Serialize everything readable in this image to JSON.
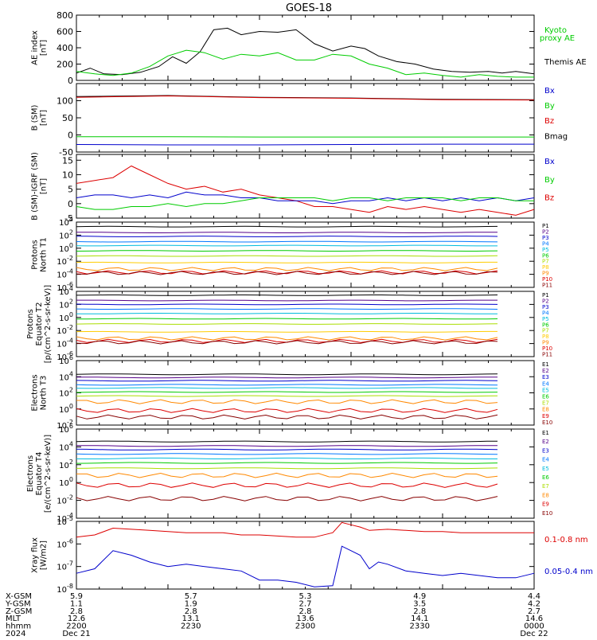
{
  "title": "GOES-18",
  "x_axis": {
    "ticks": [
      "2200",
      "2230",
      "2300",
      "2330",
      "0000"
    ],
    "rows": [
      {
        "label": "X-GSM",
        "values": [
          "5.9",
          "5.7",
          "5.3",
          "4.9",
          "4.4"
        ]
      },
      {
        "label": "Y-GSM",
        "values": [
          "1.1",
          "1.9",
          "2.7",
          "3.5",
          "4.2"
        ]
      },
      {
        "label": "Z-GSM",
        "values": [
          "2.8",
          "2.8",
          "2.8",
          "2.8",
          "2.7"
        ]
      },
      {
        "label": "MLT",
        "values": [
          "12.6",
          "13.1",
          "13.6",
          "14.1",
          "14.6"
        ]
      },
      {
        "label": "hhmm",
        "values": [
          "2200",
          "2230",
          "2300",
          "2330",
          "0000"
        ]
      },
      {
        "label": "2024",
        "values": [
          "Dec 21",
          "",
          "",
          "",
          "Dec 22"
        ]
      }
    ]
  },
  "colors": {
    "black": "#000000",
    "red": "#dd0000",
    "green": "#00cc00",
    "blue": "#0000cc"
  },
  "chart_data": [
    {
      "type": "line",
      "id": "ae",
      "ylabel": [
        "AE index",
        "[nT]"
      ],
      "ylim": [
        0,
        800
      ],
      "yticks": [
        "800",
        "600",
        "400",
        "200",
        "0"
      ],
      "legend": [
        {
          "text": "Kyoto",
          "color": "#00cc00"
        },
        {
          "text": "proxy AE",
          "color": "#00cc00"
        },
        {
          "text": "Themis AE",
          "color": "#000000"
        }
      ],
      "series": [
        {
          "name": "Themis AE",
          "color": "#000000",
          "x": [
            0,
            3,
            6,
            10,
            14,
            18,
            21,
            24,
            27,
            30,
            33,
            36,
            40,
            44,
            48,
            52,
            56,
            60,
            63,
            66,
            70,
            74,
            78,
            82,
            86,
            90,
            93,
            96,
            100
          ],
          "y": [
            90,
            150,
            80,
            70,
            100,
            170,
            290,
            210,
            350,
            620,
            640,
            560,
            600,
            590,
            620,
            450,
            360,
            420,
            390,
            300,
            230,
            200,
            140,
            110,
            100,
            110,
            90,
            110,
            80
          ]
        },
        {
          "name": "Kyoto proxy AE",
          "color": "#00cc00",
          "x": [
            0,
            4,
            8,
            12,
            16,
            20,
            24,
            28,
            32,
            36,
            40,
            44,
            48,
            52,
            56,
            60,
            64,
            68,
            72,
            76,
            80,
            84,
            88,
            92,
            96,
            100
          ],
          "y": [
            110,
            80,
            60,
            90,
            170,
            300,
            370,
            340,
            260,
            320,
            300,
            340,
            250,
            250,
            320,
            300,
            200,
            150,
            70,
            90,
            60,
            40,
            70,
            50,
            40,
            40
          ]
        }
      ]
    },
    {
      "type": "line",
      "id": "bsm",
      "ylabel": [
        "B (SM)",
        "[nT]"
      ],
      "ylim": [
        -50,
        150
      ],
      "yticks": [
        "100",
        "50",
        "0",
        "-50"
      ],
      "legend": [
        {
          "text": "Bx",
          "color": "#0000cc"
        },
        {
          "text": "By",
          "color": "#00cc00"
        },
        {
          "text": "Bz",
          "color": "#dd0000"
        },
        {
          "text": "Bmag",
          "color": "#000000"
        }
      ],
      "series": [
        {
          "name": "Bmag",
          "color": "#000000",
          "x": [
            0,
            20,
            40,
            60,
            80,
            100
          ],
          "y": [
            112,
            115,
            110,
            108,
            104,
            103
          ]
        },
        {
          "name": "Bz",
          "color": "#dd0000",
          "x": [
            0,
            20,
            40,
            60,
            80,
            100
          ],
          "y": [
            110,
            114,
            109,
            107,
            103,
            102
          ]
        },
        {
          "name": "By",
          "color": "#00cc00",
          "x": [
            0,
            20,
            40,
            60,
            80,
            100
          ],
          "y": [
            -5,
            -5,
            -6,
            -6,
            -6,
            -6
          ]
        },
        {
          "name": "Bx",
          "color": "#0000cc",
          "x": [
            0,
            20,
            40,
            60,
            80,
            100
          ],
          "y": [
            -28,
            -29,
            -29,
            -28,
            -27,
            -27
          ]
        }
      ]
    },
    {
      "type": "line",
      "id": "bsub",
      "ylabel": [
        "B (SM)-IGRF (SM)",
        "[nT]"
      ],
      "ylim": [
        -5,
        17
      ],
      "yticks": [
        "15",
        "10",
        "5",
        "0",
        "-5"
      ],
      "legend": [
        {
          "text": "Bx",
          "color": "#0000cc"
        },
        {
          "text": "By",
          "color": "#00cc00"
        },
        {
          "text": "Bz",
          "color": "#dd0000"
        }
      ],
      "series": [
        {
          "name": "Bz",
          "color": "#dd0000",
          "x": [
            0,
            4,
            8,
            12,
            16,
            20,
            24,
            28,
            32,
            36,
            40,
            44,
            48,
            52,
            56,
            60,
            64,
            68,
            72,
            76,
            80,
            84,
            88,
            92,
            96,
            100
          ],
          "y": [
            7,
            8,
            9,
            13,
            10,
            7,
            5,
            6,
            4,
            5,
            3,
            2,
            1,
            -1,
            -1,
            -2,
            -3,
            -1,
            -2,
            -1,
            -2,
            -3,
            -2,
            -3,
            -4,
            -2
          ]
        },
        {
          "name": "Bx",
          "color": "#0000cc",
          "x": [
            0,
            4,
            8,
            12,
            16,
            20,
            24,
            28,
            32,
            36,
            40,
            44,
            48,
            52,
            56,
            60,
            64,
            68,
            72,
            76,
            80,
            84,
            88,
            92,
            96,
            100
          ],
          "y": [
            2,
            3,
            3,
            2,
            3,
            2,
            4,
            3,
            3,
            2,
            2,
            1,
            1,
            1,
            0,
            1,
            1,
            2,
            1,
            2,
            1,
            2,
            1,
            2,
            1,
            2
          ]
        },
        {
          "name": "By",
          "color": "#00cc00",
          "x": [
            0,
            4,
            8,
            12,
            16,
            20,
            24,
            28,
            32,
            36,
            40,
            44,
            48,
            52,
            56,
            60,
            64,
            68,
            72,
            76,
            80,
            84,
            88,
            92,
            96,
            100
          ],
          "y": [
            -1,
            -2,
            -2,
            -1,
            -1,
            0,
            -1,
            0,
            0,
            1,
            2,
            2,
            2,
            2,
            1,
            2,
            2,
            1,
            2,
            2,
            2,
            1,
            2,
            2,
            1,
            1
          ]
        }
      ]
    },
    {
      "type": "line",
      "id": "pn",
      "scale": "log",
      "ylabel": [
        "Protons",
        "North T1"
      ],
      "ylim": [
        -6,
        4
      ],
      "yticks": [
        "10^4",
        "10^2",
        "10^0",
        "10^-2",
        "10^-4",
        "10^-6"
      ],
      "legend": [
        {
          "text": "P1",
          "color": "#000000"
        },
        {
          "text": "P2",
          "color": "#550088"
        },
        {
          "text": "P3",
          "color": "#0000cc"
        },
        {
          "text": "P4",
          "color": "#0077ff"
        },
        {
          "text": "P5",
          "color": "#00bbdd"
        },
        {
          "text": "P6",
          "color": "#00cc00"
        },
        {
          "text": "P7",
          "color": "#aadd00"
        },
        {
          "text": "P8",
          "color": "#ffcc00"
        },
        {
          "text": "P9",
          "color": "#ff8800"
        },
        {
          "text": "P10",
          "color": "#dd0000"
        },
        {
          "text": "P11",
          "color": "#880000"
        }
      ],
      "levels": [
        3.3,
        2.4,
        1.8,
        1.0,
        0.4,
        -0.4,
        -1.2,
        -2.2,
        -3.2,
        -3.7,
        -3.8
      ],
      "colors": [
        "#000000",
        "#550088",
        "#0000cc",
        "#0077ff",
        "#00bbdd",
        "#00cc00",
        "#aadd00",
        "#ffcc00",
        "#ff8800",
        "#dd0000",
        "#880000"
      ]
    },
    {
      "type": "line",
      "id": "pe",
      "scale": "log",
      "ylabel": [
        "Protons",
        "Equator T2",
        "[p/(cm^2-s-sr-keV)]"
      ],
      "ylim": [
        -6,
        4
      ],
      "yticks": [
        "10^4",
        "10^2",
        "10^0",
        "10^-2",
        "10^-4",
        "10^-6"
      ],
      "legend": [
        {
          "text": "P1",
          "color": "#000000"
        },
        {
          "text": "P2",
          "color": "#550088"
        },
        {
          "text": "P3",
          "color": "#0000cc"
        },
        {
          "text": "P4",
          "color": "#0077ff"
        },
        {
          "text": "P5",
          "color": "#00bbdd"
        },
        {
          "text": "P6",
          "color": "#00cc00"
        },
        {
          "text": "P7",
          "color": "#aadd00"
        },
        {
          "text": "P8",
          "color": "#ffcc00"
        },
        {
          "text": "P9",
          "color": "#ff8800"
        },
        {
          "text": "P10",
          "color": "#dd0000"
        },
        {
          "text": "P11",
          "color": "#880000"
        }
      ],
      "levels": [
        3.4,
        2.6,
        2.0,
        1.3,
        0.6,
        -0.2,
        -1.0,
        -2.2,
        -3.2,
        -3.6,
        -3.8
      ],
      "colors": [
        "#000000",
        "#550088",
        "#0000cc",
        "#0077ff",
        "#00bbdd",
        "#00cc00",
        "#aadd00",
        "#ffcc00",
        "#ff8800",
        "#dd0000",
        "#880000"
      ]
    },
    {
      "type": "line",
      "id": "en",
      "scale": "log",
      "ylabel": [
        "Electrons",
        "North T3"
      ],
      "ylim": [
        -2,
        6
      ],
      "yticks": [
        "10^6",
        "10^4",
        "10^2",
        "10^0",
        "10^-2"
      ],
      "legend": [
        {
          "text": "E1",
          "color": "#000000"
        },
        {
          "text": "E2",
          "color": "#550088"
        },
        {
          "text": "E3",
          "color": "#0000cc"
        },
        {
          "text": "E4",
          "color": "#0077ff"
        },
        {
          "text": "E5",
          "color": "#00bbdd"
        },
        {
          "text": "E6",
          "color": "#00cc00"
        },
        {
          "text": "E7",
          "color": "#aadd00"
        },
        {
          "text": "E8",
          "color": "#ff8800"
        },
        {
          "text": "E9",
          "color": "#dd0000"
        },
        {
          "text": "E10",
          "color": "#880000"
        }
      ],
      "levels": [
        4.3,
        3.9,
        3.5,
        3.0,
        2.6,
        2.1,
        1.6,
        0.9,
        -0.2,
        -1.0
      ],
      "colors": [
        "#000000",
        "#550088",
        "#0000cc",
        "#0077ff",
        "#00bbdd",
        "#00cc00",
        "#aadd00",
        "#ff8800",
        "#dd0000",
        "#880000"
      ]
    },
    {
      "type": "line",
      "id": "ee",
      "scale": "log",
      "ylabel": [
        "Electrons",
        "Equator T4",
        "[e/(cm^2-s-sr-keV)]"
      ],
      "ylim": [
        -4,
        6
      ],
      "yticks": [
        "10^6",
        "10^4",
        "10^2",
        "10^0",
        "10^-2",
        "10^-4"
      ],
      "legend": [
        {
          "text": "E1",
          "color": "#000000"
        },
        {
          "text": "E2",
          "color": "#550088"
        },
        {
          "text": "E3",
          "color": "#0000cc"
        },
        {
          "text": "E4",
          "color": "#0077ff"
        },
        {
          "text": "E5",
          "color": "#00bbdd"
        },
        {
          "text": "E6",
          "color": "#00cc00"
        },
        {
          "text": "E7",
          "color": "#aadd00"
        },
        {
          "text": "E8",
          "color": "#ff8800"
        },
        {
          "text": "E9",
          "color": "#dd0000"
        },
        {
          "text": "E10",
          "color": "#880000"
        }
      ],
      "levels": [
        4.6,
        4.1,
        3.7,
        3.2,
        2.7,
        2.2,
        1.6,
        0.8,
        -0.3,
        -1.8
      ],
      "colors": [
        "#000000",
        "#550088",
        "#0000cc",
        "#0077ff",
        "#00bbdd",
        "#00cc00",
        "#aadd00",
        "#ff8800",
        "#dd0000",
        "#880000"
      ]
    },
    {
      "type": "line",
      "id": "xray",
      "scale": "log",
      "ylabel": [
        "Xray flux",
        "[W/m2]"
      ],
      "ylim": [
        -8,
        -5
      ],
      "yticks": [
        "10^-5",
        "10^-6",
        "10^-7",
        "10^-8"
      ],
      "legend": [
        {
          "text": "0.1-0.8 nm",
          "color": "#dd0000"
        },
        {
          "text": "0.05-0.4 nm",
          "color": "#0000cc"
        }
      ],
      "series": [
        {
          "name": "0.1-0.8 nm",
          "color": "#dd0000",
          "x": [
            0,
            4,
            8,
            12,
            16,
            20,
            24,
            28,
            32,
            36,
            40,
            44,
            48,
            52,
            56,
            58,
            60,
            62,
            64,
            68,
            72,
            76,
            80,
            84,
            88,
            92,
            96,
            100
          ],
          "y": [
            -5.7,
            -5.6,
            -5.3,
            -5.35,
            -5.4,
            -5.45,
            -5.5,
            -5.5,
            -5.5,
            -5.6,
            -5.6,
            -5.65,
            -5.7,
            -5.7,
            -5.5,
            -5.05,
            -5.15,
            -5.25,
            -5.4,
            -5.35,
            -5.4,
            -5.45,
            -5.45,
            -5.5,
            -5.5,
            -5.5,
            -5.5,
            -5.5
          ]
        },
        {
          "name": "0.05-0.4 nm",
          "color": "#0000cc",
          "x": [
            0,
            4,
            8,
            12,
            16,
            20,
            24,
            28,
            32,
            36,
            40,
            44,
            48,
            52,
            56,
            58,
            60,
            62,
            64,
            66,
            68,
            72,
            76,
            80,
            84,
            88,
            92,
            96,
            100
          ],
          "y": [
            -7.3,
            -7.1,
            -6.3,
            -6.5,
            -6.8,
            -7.0,
            -6.9,
            -7.0,
            -7.1,
            -7.2,
            -7.6,
            -7.6,
            -7.7,
            -7.9,
            -7.85,
            -6.1,
            -6.3,
            -6.5,
            -7.1,
            -6.8,
            -6.9,
            -7.2,
            -7.3,
            -7.4,
            -7.3,
            -7.4,
            -7.5,
            -7.5,
            -7.3
          ]
        }
      ]
    }
  ]
}
